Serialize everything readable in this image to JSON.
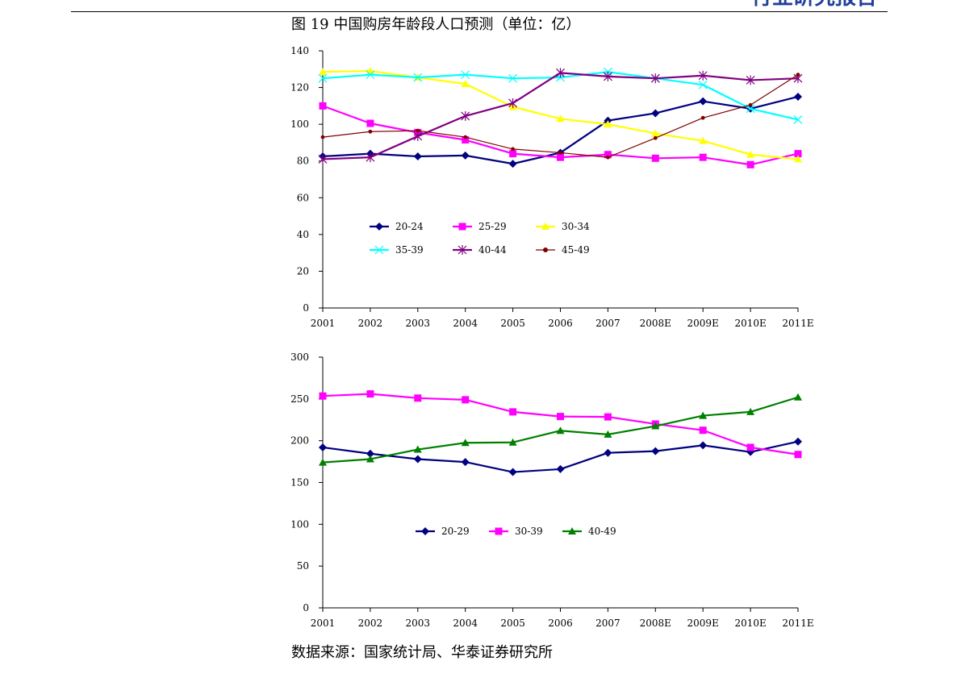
{
  "header": {
    "text": "行业研究报告"
  },
  "figure": {
    "title": "图 19  中国购房年龄段人口预测（单位：亿）",
    "source": "数据来源：国家统计局、华泰证券研究所"
  },
  "chart_data": [
    {
      "type": "line",
      "categories": [
        "2001",
        "2002",
        "2003",
        "2004",
        "2005",
        "2006",
        "2007",
        "2008E",
        "2009E",
        "2010E",
        "2011E"
      ],
      "ylim": [
        0,
        140
      ],
      "yticks": [
        0,
        20,
        40,
        60,
        80,
        100,
        120,
        140
      ],
      "grid": false,
      "legend": "inside-middle",
      "series": [
        {
          "name": "20-24",
          "color": "#000080",
          "marker": "diamond",
          "values": [
            82.5,
            84.0,
            82.5,
            83.0,
            78.5,
            84.5,
            102.0,
            106.0,
            112.5,
            108.5,
            115.0
          ]
        },
        {
          "name": "25-29",
          "color": "#ff00ff",
          "marker": "square",
          "values": [
            110.0,
            100.5,
            95.5,
            91.5,
            84.0,
            82.0,
            83.5,
            81.5,
            82.0,
            78.0,
            84.0
          ]
        },
        {
          "name": "30-34",
          "color": "#ffff00",
          "marker": "triangle",
          "values": [
            128.5,
            129.0,
            125.5,
            122.0,
            109.5,
            103.0,
            100.0,
            95.0,
            91.0,
            83.5,
            81.0
          ]
        },
        {
          "name": "35-39",
          "color": "#00ffff",
          "marker": "x",
          "values": [
            125.0,
            127.0,
            125.5,
            127.0,
            125.0,
            125.5,
            128.5,
            125.0,
            121.5,
            108.5,
            102.5
          ]
        },
        {
          "name": "40-44",
          "color": "#800080",
          "marker": "star",
          "values": [
            81.0,
            82.0,
            93.5,
            104.5,
            111.5,
            128.0,
            126.0,
            125.0,
            126.5,
            124.0,
            125.0
          ]
        },
        {
          "name": "45-49",
          "color": "#800000",
          "marker": "dot",
          "values": [
            93.0,
            96.0,
            96.5,
            93.0,
            86.5,
            84.5,
            82.0,
            92.5,
            103.5,
            110.5,
            127.0
          ]
        }
      ]
    },
    {
      "type": "line",
      "categories": [
        "2001",
        "2002",
        "2003",
        "2004",
        "2005",
        "2006",
        "2007",
        "2008E",
        "2009E",
        "2010E",
        "2011E"
      ],
      "ylim": [
        0,
        300
      ],
      "yticks": [
        0,
        50,
        100,
        150,
        200,
        250,
        300
      ],
      "grid": false,
      "legend": "inside-middle",
      "series": [
        {
          "name": "20-29",
          "color": "#000080",
          "marker": "diamond",
          "values": [
            192.0,
            184.5,
            178.0,
            174.5,
            162.5,
            166.0,
            185.5,
            187.5,
            194.5,
            186.5,
            199.0
          ]
        },
        {
          "name": "30-39",
          "color": "#ff00ff",
          "marker": "square",
          "values": [
            253.5,
            256.0,
            251.0,
            249.0,
            234.5,
            229.0,
            228.5,
            220.0,
            212.5,
            192.0,
            183.5
          ]
        },
        {
          "name": "40-49",
          "color": "#008000",
          "marker": "triangle",
          "values": [
            174.0,
            178.0,
            189.5,
            197.5,
            198.0,
            212.0,
            207.5,
            217.5,
            230.0,
            234.5,
            252.0
          ]
        }
      ]
    }
  ]
}
